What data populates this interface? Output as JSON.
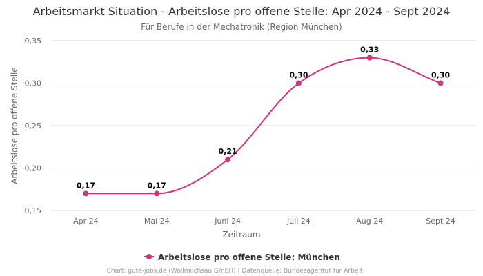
{
  "chart_data": {
    "type": "line",
    "title": "Arbeitsmarkt Situation - Arbeitslose pro offene Stelle: Apr 2024 - Sept 2024",
    "subtitle": "Für Berufe in der Mechatronik (Region München)",
    "xlabel": "Zeitraum",
    "ylabel": "Arbeitslose pro offene Stelle",
    "categories": [
      "Apr 24",
      "Mai 24",
      "Juni 24",
      "Juli 24",
      "Aug 24",
      "Sept 24"
    ],
    "ylim": [
      0.15,
      0.35
    ],
    "yticks": [
      0.15,
      0.2,
      0.25,
      0.3,
      0.35
    ],
    "ytick_labels": [
      "0,15",
      "0,20",
      "0,25",
      "0,30",
      "0,35"
    ],
    "grid": true,
    "legend": "bottom",
    "series": [
      {
        "name": "Arbeitslose pro offene Stelle: München",
        "color": "#cc3380",
        "values": [
          0.17,
          0.17,
          0.21,
          0.3,
          0.33,
          0.3
        ],
        "labels": [
          "0,17",
          "0,17",
          "0,21",
          "0,30",
          "0,33",
          "0,30"
        ]
      }
    ]
  },
  "credits": "Chart: gute-jobs.de (Wollmilchsau GmbH) | Datenquelle: Bundesagentur für Arbeit"
}
